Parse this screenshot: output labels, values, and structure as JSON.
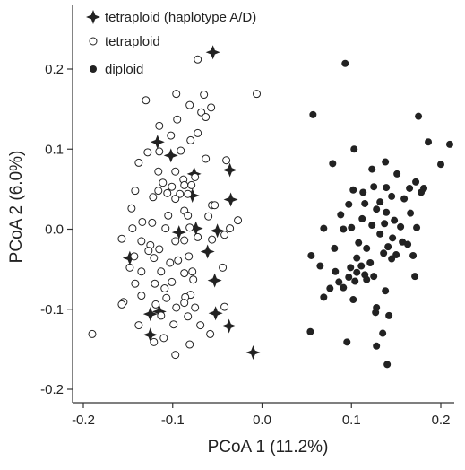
{
  "chart_data": {
    "type": "scatter",
    "title": "",
    "xlabel": "PCoA 1 (11.2%)",
    "ylabel": "PCoA 2 (6.0%)",
    "xlim": [
      -0.2,
      0.2
    ],
    "ylim": [
      -0.2,
      0.2
    ],
    "xticks": [
      -0.2,
      -0.1,
      0.0,
      0.1,
      0.2
    ],
    "yticks": [
      -0.2,
      -0.1,
      0.0,
      0.1,
      0.2
    ],
    "xtick_labels": [
      "-0.2",
      "-0.1",
      "0.0",
      "0.1",
      "0.2"
    ],
    "ytick_labels": [
      "-0.2",
      "-0.1",
      "0.0",
      "0.1",
      "0.2"
    ],
    "grid": false,
    "legend_position": "top-left",
    "series": [
      {
        "name": "tetraploid (haplotype A/D)",
        "marker": "four-point-star",
        "color": "#222222",
        "points": [
          [
            -0.055,
            0.221
          ],
          [
            -0.117,
            0.109
          ],
          [
            -0.102,
            0.092
          ],
          [
            -0.076,
            0.069
          ],
          [
            -0.036,
            0.074
          ],
          [
            -0.078,
            0.042
          ],
          [
            -0.035,
            0.037
          ],
          [
            -0.093,
            -0.004
          ],
          [
            -0.074,
            0.001
          ],
          [
            -0.05,
            -0.002
          ],
          [
            -0.148,
            -0.036
          ],
          [
            -0.061,
            -0.028
          ],
          [
            -0.053,
            -0.064
          ],
          [
            -0.125,
            -0.106
          ],
          [
            -0.115,
            -0.103
          ],
          [
            -0.052,
            -0.105
          ],
          [
            -0.037,
            -0.121
          ],
          [
            -0.125,
            -0.132
          ],
          [
            -0.01,
            -0.154
          ]
        ]
      },
      {
        "name": "tetraploid",
        "marker": "open-circle",
        "color": "#222222",
        "points": [
          [
            -0.072,
            0.212
          ],
          [
            -0.006,
            0.169
          ],
          [
            -0.065,
            0.168
          ],
          [
            -0.096,
            0.169
          ],
          [
            -0.13,
            0.161
          ],
          [
            -0.081,
            0.155
          ],
          [
            -0.057,
            0.152
          ],
          [
            -0.068,
            0.146
          ],
          [
            -0.063,
            0.14
          ],
          [
            -0.095,
            0.137
          ],
          [
            -0.115,
            0.129
          ],
          [
            -0.072,
            0.12
          ],
          [
            -0.102,
            0.117
          ],
          [
            -0.08,
            0.111
          ],
          [
            -0.091,
            0.098
          ],
          [
            -0.128,
            0.096
          ],
          [
            -0.115,
            0.097
          ],
          [
            -0.063,
            0.088
          ],
          [
            -0.04,
            0.086
          ],
          [
            -0.138,
            0.083
          ],
          [
            -0.116,
            0.072
          ],
          [
            -0.097,
            0.072
          ],
          [
            -0.088,
            0.062
          ],
          [
            -0.075,
            0.065
          ],
          [
            -0.111,
            0.058
          ],
          [
            -0.101,
            0.053
          ],
          [
            -0.087,
            0.055
          ],
          [
            -0.079,
            0.055
          ],
          [
            -0.106,
            0.045
          ],
          [
            -0.092,
            0.044
          ],
          [
            -0.116,
            0.048
          ],
          [
            -0.142,
            0.048
          ],
          [
            -0.083,
            0.044
          ],
          [
            -0.122,
            0.04
          ],
          [
            -0.097,
            0.038
          ],
          [
            -0.056,
            0.03
          ],
          [
            -0.053,
            0.03
          ],
          [
            -0.087,
            0.023
          ],
          [
            -0.146,
            0.026
          ],
          [
            -0.105,
            0.017
          ],
          [
            -0.083,
            0.017
          ],
          [
            -0.06,
            0.016
          ],
          [
            -0.027,
            0.011
          ],
          [
            -0.134,
            0.009
          ],
          [
            -0.123,
            0.008
          ],
          [
            -0.145,
            0.001
          ],
          [
            -0.108,
            0.001
          ],
          [
            -0.081,
            0.002
          ],
          [
            -0.036,
            0.001
          ],
          [
            -0.042,
            -0.007
          ],
          [
            -0.157,
            -0.012
          ],
          [
            -0.135,
            -0.015
          ],
          [
            -0.125,
            -0.02
          ],
          [
            -0.097,
            -0.015
          ],
          [
            -0.072,
            -0.01
          ],
          [
            -0.087,
            -0.014
          ],
          [
            -0.056,
            -0.013
          ],
          [
            -0.115,
            -0.025
          ],
          [
            -0.127,
            -0.027
          ],
          [
            -0.143,
            -0.034
          ],
          [
            -0.148,
            -0.048
          ],
          [
            -0.121,
            -0.036
          ],
          [
            -0.082,
            -0.034
          ],
          [
            -0.094,
            -0.039
          ],
          [
            -0.103,
            -0.042
          ],
          [
            -0.135,
            -0.053
          ],
          [
            -0.113,
            -0.053
          ],
          [
            -0.087,
            -0.055
          ],
          [
            -0.078,
            -0.053
          ],
          [
            -0.044,
            -0.048
          ],
          [
            -0.142,
            -0.068
          ],
          [
            -0.12,
            -0.068
          ],
          [
            -0.077,
            -0.063
          ],
          [
            -0.101,
            -0.066
          ],
          [
            -0.109,
            -0.074
          ],
          [
            -0.08,
            -0.082
          ],
          [
            -0.135,
            -0.083
          ],
          [
            -0.086,
            -0.085
          ],
          [
            -0.107,
            -0.086
          ],
          [
            -0.155,
            -0.091
          ],
          [
            -0.157,
            -0.094
          ],
          [
            -0.119,
            -0.094
          ],
          [
            -0.087,
            -0.092
          ],
          [
            -0.096,
            -0.098
          ],
          [
            -0.042,
            -0.097
          ],
          [
            -0.075,
            -0.098
          ],
          [
            -0.113,
            -0.108
          ],
          [
            -0.083,
            -0.109
          ],
          [
            -0.138,
            -0.12
          ],
          [
            -0.099,
            -0.119
          ],
          [
            -0.069,
            -0.12
          ],
          [
            -0.058,
            -0.131
          ],
          [
            -0.11,
            -0.136
          ],
          [
            -0.121,
            -0.141
          ],
          [
            -0.081,
            -0.144
          ],
          [
            -0.19,
            -0.131
          ],
          [
            -0.097,
            -0.157
          ]
        ]
      },
      {
        "name": "diploid",
        "marker": "filled-circle",
        "color": "#222222",
        "points": [
          [
            0.093,
            0.207
          ],
          [
            0.057,
            0.143
          ],
          [
            0.175,
            0.141
          ],
          [
            0.103,
            0.1
          ],
          [
            0.186,
            0.109
          ],
          [
            0.21,
            0.106
          ],
          [
            0.138,
            0.084
          ],
          [
            0.2,
            0.081
          ],
          [
            0.123,
            0.075
          ],
          [
            0.079,
            0.082
          ],
          [
            0.151,
            0.069
          ],
          [
            0.172,
            0.059
          ],
          [
            0.165,
            0.051
          ],
          [
            0.139,
            0.052
          ],
          [
            0.125,
            0.053
          ],
          [
            0.113,
            0.046
          ],
          [
            0.102,
            0.049
          ],
          [
            0.181,
            0.051
          ],
          [
            0.178,
            0.046
          ],
          [
            0.145,
            0.041
          ],
          [
            0.159,
            0.038
          ],
          [
            0.115,
            0.032
          ],
          [
            0.132,
            0.034
          ],
          [
            0.097,
            0.031
          ],
          [
            0.128,
            0.025
          ],
          [
            0.139,
            0.021
          ],
          [
            0.166,
            0.02
          ],
          [
            0.088,
            0.018
          ],
          [
            0.112,
            0.013
          ],
          [
            0.148,
            0.011
          ],
          [
            0.137,
            0.007
          ],
          [
            0.155,
            0.003
          ],
          [
            0.1,
            0.002
          ],
          [
            0.091,
            0.0
          ],
          [
            0.123,
            0.005
          ],
          [
            0.173,
            0.002
          ],
          [
            0.069,
            0.001
          ],
          [
            0.132,
            -0.006
          ],
          [
            0.146,
            -0.011
          ],
          [
            0.108,
            -0.017
          ],
          [
            0.157,
            -0.016
          ],
          [
            0.163,
            -0.019
          ],
          [
            0.141,
            -0.022
          ],
          [
            0.117,
            -0.024
          ],
          [
            0.081,
            -0.024
          ],
          [
            0.136,
            -0.03
          ],
          [
            0.15,
            -0.032
          ],
          [
            0.106,
            -0.036
          ],
          [
            0.145,
            -0.037
          ],
          [
            0.169,
            -0.033
          ],
          [
            0.055,
            -0.033
          ],
          [
            0.065,
            -0.046
          ],
          [
            0.121,
            -0.042
          ],
          [
            0.099,
            -0.048
          ],
          [
            0.111,
            -0.046
          ],
          [
            0.106,
            -0.054
          ],
          [
            0.115,
            -0.057
          ],
          [
            0.082,
            -0.053
          ],
          [
            0.097,
            -0.06
          ],
          [
            0.171,
            -0.059
          ],
          [
            0.125,
            -0.059
          ],
          [
            0.117,
            -0.063
          ],
          [
            0.086,
            -0.066
          ],
          [
            0.104,
            -0.065
          ],
          [
            0.091,
            -0.073
          ],
          [
            0.076,
            -0.074
          ],
          [
            0.138,
            -0.077
          ],
          [
            0.069,
            -0.085
          ],
          [
            0.102,
            -0.088
          ],
          [
            0.128,
            -0.098
          ],
          [
            0.127,
            -0.104
          ],
          [
            0.142,
            -0.108
          ],
          [
            0.054,
            -0.128
          ],
          [
            0.095,
            -0.141
          ],
          [
            0.128,
            -0.146
          ],
          [
            0.14,
            -0.169
          ],
          [
            0.135,
            -0.13
          ]
        ]
      }
    ]
  }
}
